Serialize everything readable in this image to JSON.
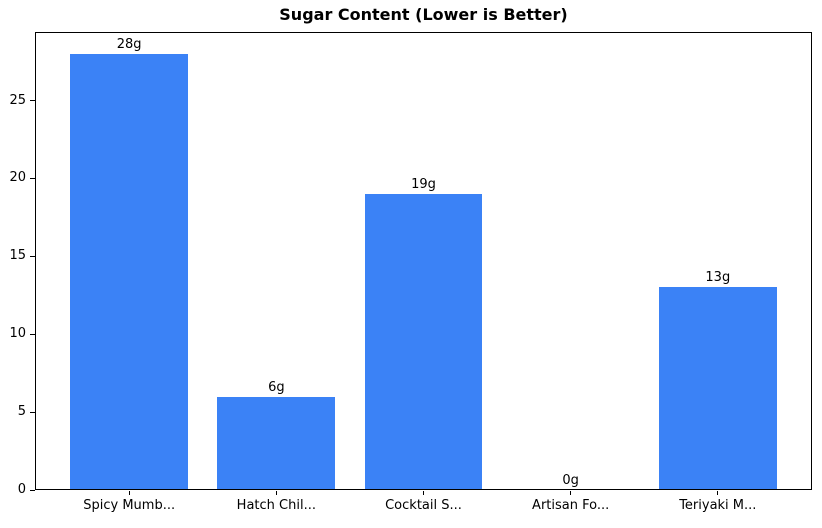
{
  "chart_data": {
    "type": "bar",
    "title": "Sugar Content (Lower is Better)",
    "xlabel": "",
    "ylabel": "",
    "categories": [
      "Spicy Mumb...",
      "Hatch Chil...",
      "Cocktail S...",
      "Artisan Fo...",
      "Teriyaki M..."
    ],
    "values": [
      28,
      6,
      19,
      0,
      13
    ],
    "bar_labels": [
      "28g",
      "6g",
      "19g",
      "0g",
      "13g"
    ],
    "unit": "g",
    "yticks": [
      0,
      5,
      10,
      15,
      20,
      25
    ],
    "ylim": [
      0,
      29.4
    ],
    "xlim": [
      -0.64,
      4.64
    ],
    "bar_width": 0.8,
    "bar_color": "#3b82f6",
    "axis_color": "#000000",
    "background_color": "#ffffff",
    "grid": false,
    "legend": null
  }
}
